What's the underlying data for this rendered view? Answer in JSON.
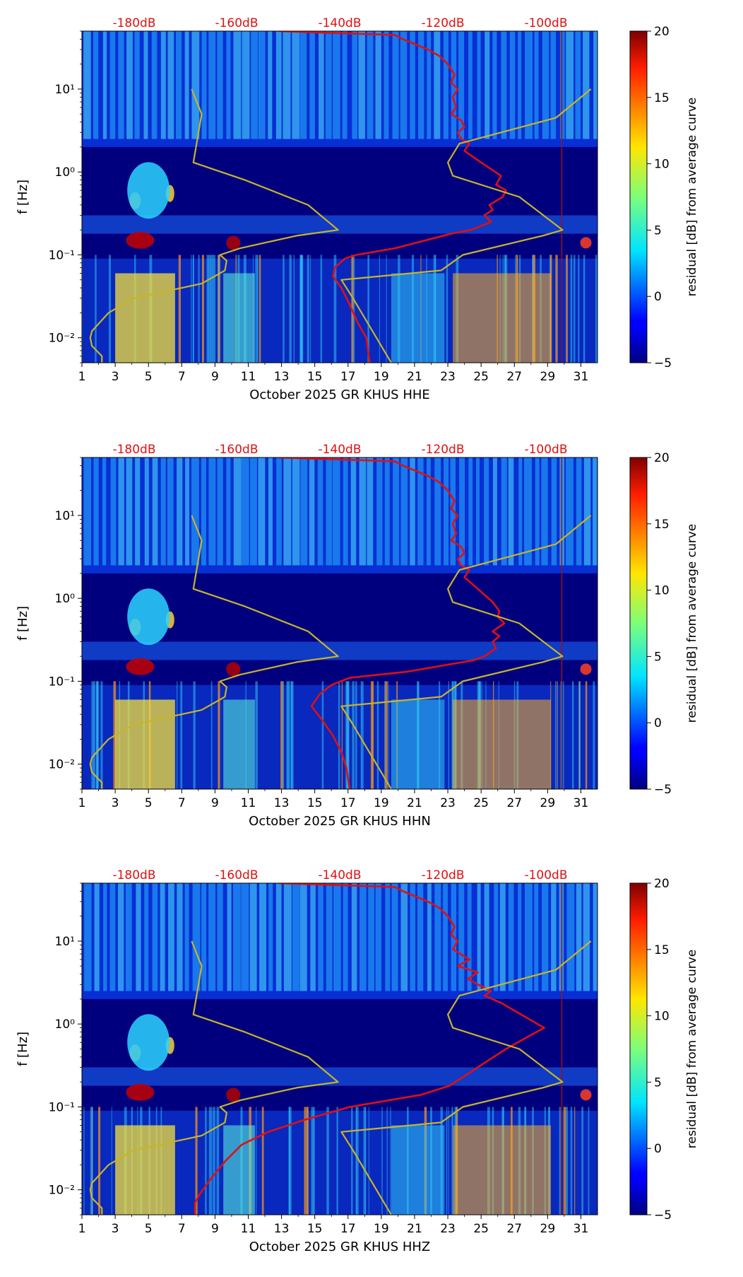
{
  "figure": {
    "colorbar": {
      "label": "residual [dB] from average curve",
      "ticks": [
        20,
        15,
        10,
        5,
        0,
        -5
      ],
      "tick_labels": [
        "20",
        "15",
        "10",
        "5",
        "0",
        "−5"
      ]
    },
    "colors": {
      "noise_curve": "#e01010",
      "model_curve": "#c8b428",
      "db_label": "#e01010",
      "background": "#00007f"
    }
  },
  "chart_data": [
    {
      "type": "heatmap",
      "title": "",
      "xlabel": "October 2025 GR KHUS  HHE",
      "ylabel": "f [Hz]",
      "x_tick_labels": [
        "1",
        "3",
        "5",
        "7",
        "9",
        "11",
        "13",
        "15",
        "17",
        "19",
        "21",
        "23",
        "25",
        "27",
        "29",
        "31"
      ],
      "y_tick_labels": [
        "10¹",
        "10⁰",
        "10⁻¹",
        "10⁻²"
      ],
      "top_db_labels": [
        "-180dB",
        "-160dB",
        "-140dB",
        "-120dB",
        "-100dB"
      ],
      "xlim": [
        1,
        32
      ],
      "ylim_hz": [
        0.005,
        50
      ],
      "colorbar_range_db": [
        -5,
        20
      ],
      "series": [
        {
          "name": "noise_curve_day",
          "x": [
            12.8,
            19.8,
            20.3,
            21,
            21.8,
            22.5,
            23,
            23.4,
            23.2,
            23.6,
            23.3,
            23.5,
            23.2,
            23.8,
            24,
            23.6,
            23.8,
            24.3,
            24,
            25,
            26.2,
            25.9,
            26.5,
            26.3,
            25.5,
            25.7,
            25.2,
            25.6,
            24.4,
            23.2,
            19.8,
            17.5,
            16.8,
            16.2,
            16.1,
            16.6,
            17.1,
            17.6,
            18.1,
            18.3
          ],
          "y_hz": [
            50,
            45,
            40,
            35,
            30,
            25,
            20,
            15,
            12,
            10,
            8,
            6,
            5,
            4.2,
            3.5,
            3,
            2.5,
            2.2,
            1.8,
            1.3,
            0.9,
            0.7,
            0.6,
            0.5,
            0.4,
            0.35,
            0.3,
            0.25,
            0.2,
            0.18,
            0.12,
            0.1,
            0.09,
            0.07,
            0.055,
            0.04,
            0.025,
            0.015,
            0.01,
            0.005
          ]
        },
        {
          "name": "model_curve_day",
          "x": [
            7.6,
            8.2,
            7.7,
            10.8,
            14.6,
            16.4,
            13.9,
            10.5,
            9.3,
            9.7,
            9.6,
            8.2,
            4.1,
            2.6,
            1.6,
            1.5,
            1.6,
            2.2,
            2.2
          ],
          "y_hz": [
            10,
            5,
            1.3,
            0.8,
            0.4,
            0.2,
            0.17,
            0.12,
            0.1,
            0.085,
            0.065,
            0.045,
            0.03,
            0.02,
            0.012,
            0.01,
            0.008,
            0.006,
            0.005
          ]
        },
        {
          "name": "model_curve_day_high",
          "x": [
            19.6,
            17.3,
            16.6,
            22.6,
            23.9,
            28.7,
            29.9,
            27.3,
            23.3,
            23.0,
            23.7,
            29.5,
            31.6
          ],
          "y_hz": [
            0.005,
            0.03,
            0.05,
            0.065,
            0.1,
            0.17,
            0.2,
            0.5,
            0.9,
            1.3,
            2.2,
            4.5,
            10
          ]
        }
      ]
    },
    {
      "type": "heatmap",
      "title": "",
      "xlabel": "October 2025 GR KHUS  HHN",
      "ylabel": "f [Hz]",
      "x_tick_labels": [
        "1",
        "3",
        "5",
        "7",
        "9",
        "11",
        "13",
        "15",
        "17",
        "19",
        "21",
        "23",
        "25",
        "27",
        "29",
        "31"
      ],
      "y_tick_labels": [
        "10¹",
        "10⁰",
        "10⁻¹",
        "10⁻²"
      ],
      "top_db_labels": [
        "-180dB",
        "-160dB",
        "-140dB",
        "-120dB",
        "-100dB"
      ],
      "xlim": [
        1,
        32
      ],
      "ylim_hz": [
        0.005,
        50
      ],
      "colorbar_range_db": [
        -5,
        20
      ],
      "series": [
        {
          "name": "noise_curve_day",
          "x": [
            12.8,
            19.8,
            20.3,
            21,
            21.8,
            22.5,
            23,
            23.4,
            23.2,
            23.6,
            23.3,
            23.5,
            23.2,
            23.8,
            24,
            23.6,
            23.8,
            24.3,
            24,
            24.8,
            25.7,
            26.1,
            26,
            26.4,
            25.7,
            26.1,
            25.7,
            25.9,
            25.2,
            24.6,
            20.5,
            17.1,
            16,
            15.3,
            14.8,
            15.4,
            16.1,
            16.6,
            16.9,
            17.1
          ],
          "y_hz": [
            50,
            45,
            40,
            35,
            30,
            25,
            20,
            15,
            12,
            10,
            8,
            6,
            5,
            4.2,
            3.5,
            3,
            2.5,
            2.2,
            1.8,
            1.3,
            0.9,
            0.7,
            0.6,
            0.5,
            0.4,
            0.35,
            0.3,
            0.25,
            0.2,
            0.18,
            0.13,
            0.11,
            0.09,
            0.07,
            0.05,
            0.035,
            0.022,
            0.014,
            0.009,
            0.005
          ]
        },
        {
          "name": "model_curve_day",
          "x": [
            7.6,
            8.2,
            7.7,
            10.8,
            14.6,
            16.4,
            13.9,
            10.5,
            9.3,
            9.7,
            9.6,
            8.2,
            4.1,
            2.6,
            1.6,
            1.5,
            1.6,
            2.2,
            2.2
          ],
          "y_hz": [
            10,
            5,
            1.3,
            0.8,
            0.4,
            0.2,
            0.17,
            0.12,
            0.1,
            0.085,
            0.065,
            0.045,
            0.03,
            0.02,
            0.012,
            0.01,
            0.008,
            0.006,
            0.005
          ]
        },
        {
          "name": "model_curve_day_high",
          "x": [
            19.6,
            17.3,
            16.6,
            22.6,
            23.9,
            28.7,
            29.9,
            27.3,
            23.3,
            23.0,
            23.7,
            29.5,
            31.6
          ],
          "y_hz": [
            0.005,
            0.03,
            0.05,
            0.065,
            0.1,
            0.17,
            0.2,
            0.5,
            0.9,
            1.3,
            2.2,
            4.5,
            10
          ]
        }
      ]
    },
    {
      "type": "heatmap",
      "title": "",
      "xlabel": "October 2025 GR KHUS  HHZ",
      "ylabel": "f [Hz]",
      "x_tick_labels": [
        "1",
        "3",
        "5",
        "7",
        "9",
        "11",
        "13",
        "15",
        "17",
        "19",
        "21",
        "23",
        "25",
        "27",
        "29",
        "31"
      ],
      "y_tick_labels": [
        "10¹",
        "10⁰",
        "10⁻¹",
        "10⁻²"
      ],
      "top_db_labels": [
        "-180dB",
        "-160dB",
        "-140dB",
        "-120dB",
        "-100dB"
      ],
      "xlim": [
        1,
        32
      ],
      "ylim_hz": [
        0.005,
        50
      ],
      "colorbar_range_db": [
        -5,
        20
      ],
      "series": [
        {
          "name": "noise_curve_day",
          "x": [
            12.8,
            19.8,
            20.3,
            21,
            21.8,
            22.5,
            23,
            23.4,
            23.2,
            23.6,
            23.3,
            24.3,
            23.6,
            24.8,
            24.2,
            24.8,
            25.6,
            25.2,
            26.2,
            27.4,
            28.8,
            27.8,
            26.5,
            25.3,
            24.2,
            23.1,
            21.4,
            17.1,
            14.4,
            12.2,
            10.6,
            9.6,
            8.8,
            8.1,
            7.8,
            7.8
          ],
          "y_hz": [
            50,
            45,
            40,
            35,
            30,
            25,
            20,
            15,
            12,
            10,
            8,
            6,
            5,
            4.2,
            3.5,
            3,
            2.5,
            2.2,
            1.8,
            1.3,
            0.9,
            0.7,
            0.5,
            0.35,
            0.25,
            0.18,
            0.14,
            0.1,
            0.07,
            0.05,
            0.035,
            0.022,
            0.014,
            0.009,
            0.007,
            0.005
          ]
        },
        {
          "name": "model_curve_day",
          "x": [
            7.6,
            8.2,
            7.7,
            10.8,
            14.6,
            16.4,
            13.9,
            10.5,
            9.3,
            9.7,
            9.6,
            8.2,
            4.1,
            2.6,
            1.6,
            1.5,
            1.6,
            2.2,
            2.2
          ],
          "y_hz": [
            10,
            5,
            1.3,
            0.8,
            0.4,
            0.2,
            0.17,
            0.12,
            0.1,
            0.085,
            0.065,
            0.045,
            0.03,
            0.02,
            0.012,
            0.01,
            0.008,
            0.006,
            0.005
          ]
        },
        {
          "name": "model_curve_day_high",
          "x": [
            19.6,
            17.3,
            16.6,
            22.6,
            23.9,
            28.7,
            29.9,
            27.3,
            23.3,
            23.0,
            23.7,
            29.5,
            31.6
          ],
          "y_hz": [
            0.005,
            0.03,
            0.05,
            0.065,
            0.1,
            0.17,
            0.2,
            0.5,
            0.9,
            1.3,
            2.2,
            4.5,
            10
          ]
        }
      ]
    }
  ]
}
